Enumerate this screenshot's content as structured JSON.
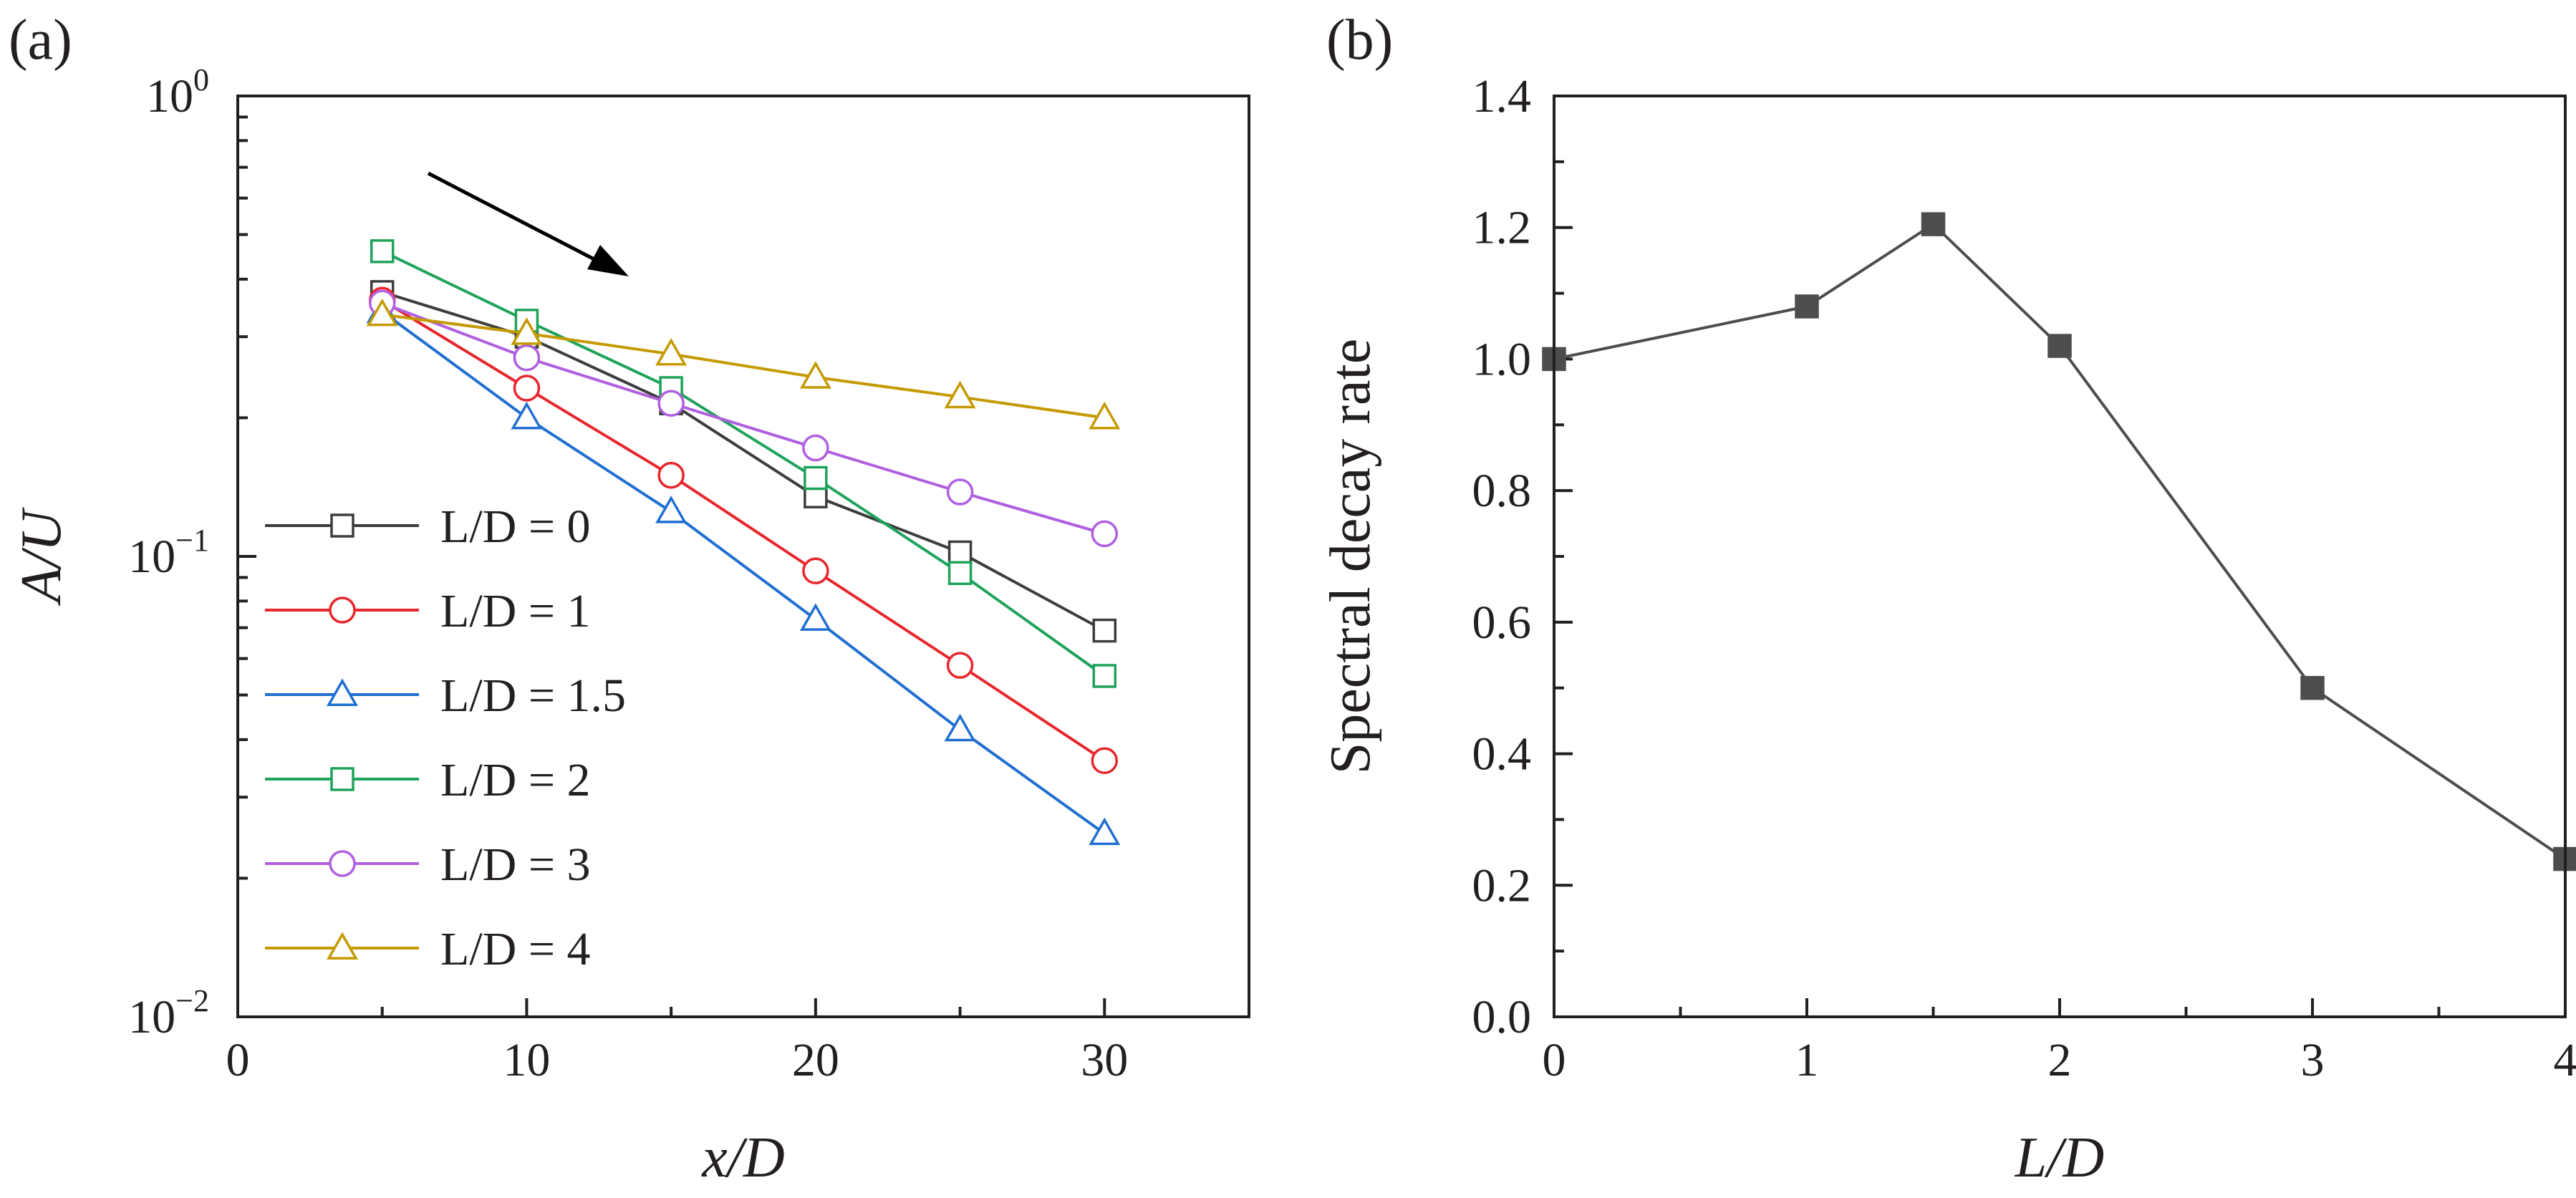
{
  "chart_data": [
    {
      "panel": "(a)",
      "type": "line",
      "xlabel": "x/D",
      "ylabel": "A/U",
      "xlim": [
        0,
        35
      ],
      "ylim": [
        0.01,
        1
      ],
      "yscale": "log",
      "xticks": [
        0,
        10,
        20,
        30
      ],
      "yticks": [
        {
          "base": "10",
          "exp": "0",
          "value": 1
        },
        {
          "base": "10",
          "exp": "−1",
          "value": 0.1
        },
        {
          "base": "10",
          "exp": "−2",
          "value": 0.01
        }
      ],
      "legend_position": "left",
      "annotation": "arrow pointing down-right",
      "x": [
        5,
        10,
        15,
        20,
        25,
        30
      ],
      "series": [
        {
          "name": "L/D = 0",
          "color": "#3d3d3d",
          "marker": "square",
          "values": [
            0.375,
            0.3,
            0.215,
            0.135,
            0.102,
            0.069
          ]
        },
        {
          "name": "L/D = 1",
          "color": "#e8262c",
          "marker": "circle",
          "values": [
            0.36,
            0.232,
            0.15,
            0.093,
            0.058,
            0.036
          ]
        },
        {
          "name": "L/D = 1.5",
          "color": "#1f6fd1",
          "marker": "triangle",
          "values": [
            0.34,
            0.2,
            0.125,
            0.073,
            0.042,
            0.025
          ]
        },
        {
          "name": "L/D = 2",
          "color": "#1fa35b",
          "marker": "square",
          "values": [
            0.46,
            0.325,
            0.232,
            0.148,
            0.092,
            0.055
          ]
        },
        {
          "name": "L/D = 3",
          "color": "#b05fe0",
          "marker": "circle",
          "values": [
            0.355,
            0.27,
            0.215,
            0.172,
            0.138,
            0.112
          ]
        },
        {
          "name": "L/D = 4",
          "color": "#c49a00",
          "marker": "triangle",
          "values": [
            0.335,
            0.305,
            0.275,
            0.245,
            0.222,
            0.2
          ]
        }
      ]
    },
    {
      "panel": "(b)",
      "type": "line",
      "xlabel": "L/D",
      "ylabel": "Spectral decay rate",
      "xlim": [
        0,
        4
      ],
      "ylim": [
        0,
        1.4
      ],
      "xticks": [
        "0",
        "1",
        "2",
        "3",
        "4"
      ],
      "yticks": [
        "0.0",
        "0.2",
        "0.4",
        "0.6",
        "0.8",
        "1.0",
        "1.2",
        "1.4"
      ],
      "series": [
        {
          "color": "#4d4d4d",
          "marker": "filled-square",
          "x": [
            0,
            1,
            1.5,
            2,
            3,
            4
          ],
          "values": [
            1.0,
            1.08,
            1.205,
            1.02,
            0.5,
            0.24
          ]
        }
      ]
    }
  ]
}
